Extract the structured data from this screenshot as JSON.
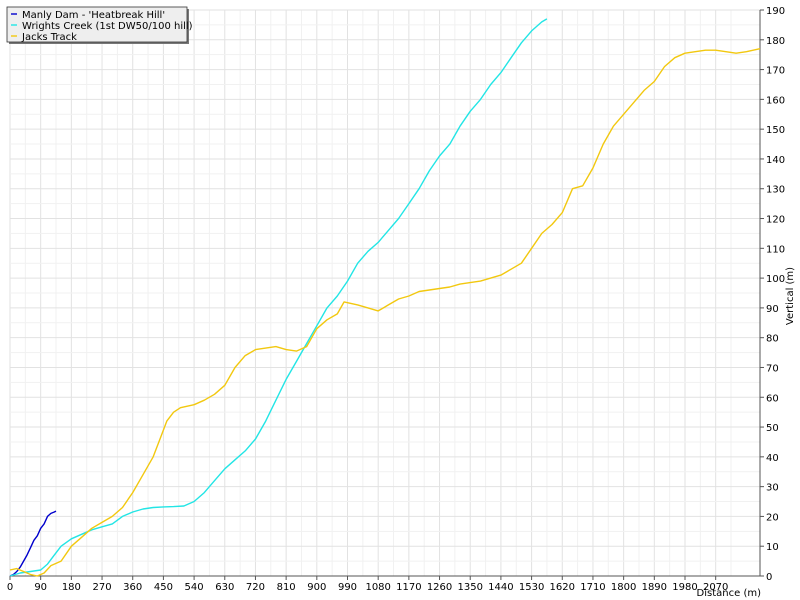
{
  "chart_data": {
    "type": "line",
    "title": "",
    "xlabel": "Distance (m)",
    "ylabel": "Vertical (m)",
    "xlim": [
      0,
      2200
    ],
    "ylim": [
      0,
      190
    ],
    "x_ticks": [
      0,
      90,
      180,
      270,
      360,
      450,
      540,
      630,
      720,
      810,
      900,
      990,
      1080,
      1170,
      1260,
      1350,
      1440,
      1530,
      1620,
      1710,
      1800,
      1890,
      1980,
      2070
    ],
    "y_ticks": [
      0,
      10,
      20,
      30,
      40,
      50,
      60,
      70,
      80,
      90,
      100,
      110,
      120,
      130,
      140,
      150,
      160,
      170,
      180,
      190
    ],
    "grid": true,
    "legend_position": "top-left",
    "series": [
      {
        "name": "Manly Dam - 'Heatbreak Hill'",
        "color": "#0000cc",
        "points": [
          [
            0,
            0
          ],
          [
            10,
            0.5
          ],
          [
            20,
            1.5
          ],
          [
            30,
            3
          ],
          [
            40,
            5
          ],
          [
            50,
            7
          ],
          [
            60,
            9.5
          ],
          [
            70,
            12
          ],
          [
            80,
            13.5
          ],
          [
            90,
            16
          ],
          [
            100,
            17.5
          ],
          [
            110,
            20
          ],
          [
            120,
            21
          ],
          [
            130,
            21.5
          ],
          [
            135,
            21.8
          ]
        ]
      },
      {
        "name": "Wrights Creek (1st DW50/100 hill)",
        "color": "#22e5e5",
        "points": [
          [
            0,
            0
          ],
          [
            30,
            1
          ],
          [
            60,
            1.5
          ],
          [
            90,
            2
          ],
          [
            110,
            4
          ],
          [
            130,
            7
          ],
          [
            150,
            10
          ],
          [
            180,
            12.5
          ],
          [
            210,
            14
          ],
          [
            240,
            15.5
          ],
          [
            270,
            16.5
          ],
          [
            300,
            17.5
          ],
          [
            330,
            20
          ],
          [
            360,
            21.5
          ],
          [
            390,
            22.5
          ],
          [
            420,
            23
          ],
          [
            450,
            23.2
          ],
          [
            480,
            23.3
          ],
          [
            510,
            23.5
          ],
          [
            540,
            25
          ],
          [
            570,
            28
          ],
          [
            600,
            32
          ],
          [
            630,
            36
          ],
          [
            660,
            39
          ],
          [
            690,
            42
          ],
          [
            720,
            46
          ],
          [
            750,
            52
          ],
          [
            780,
            59
          ],
          [
            810,
            66
          ],
          [
            840,
            72
          ],
          [
            870,
            78
          ],
          [
            900,
            84
          ],
          [
            930,
            90
          ],
          [
            960,
            94
          ],
          [
            990,
            99
          ],
          [
            1020,
            105
          ],
          [
            1050,
            109
          ],
          [
            1080,
            112
          ],
          [
            1110,
            116
          ],
          [
            1140,
            120
          ],
          [
            1170,
            125
          ],
          [
            1200,
            130
          ],
          [
            1230,
            136
          ],
          [
            1260,
            141
          ],
          [
            1290,
            145
          ],
          [
            1320,
            151
          ],
          [
            1350,
            156
          ],
          [
            1380,
            160
          ],
          [
            1410,
            165
          ],
          [
            1440,
            169
          ],
          [
            1470,
            174
          ],
          [
            1500,
            179
          ],
          [
            1530,
            183
          ],
          [
            1560,
            186
          ],
          [
            1575,
            187
          ]
        ]
      },
      {
        "name": "Jacks Track",
        "color": "#f2c80f",
        "points": [
          [
            0,
            2
          ],
          [
            20,
            2.5
          ],
          [
            40,
            1.5
          ],
          [
            60,
            0.5
          ],
          [
            80,
            0
          ],
          [
            100,
            1
          ],
          [
            120,
            3.5
          ],
          [
            150,
            5
          ],
          [
            180,
            10
          ],
          [
            210,
            13
          ],
          [
            240,
            16
          ],
          [
            270,
            18
          ],
          [
            300,
            20
          ],
          [
            330,
            23
          ],
          [
            360,
            28
          ],
          [
            390,
            34
          ],
          [
            420,
            40
          ],
          [
            440,
            46
          ],
          [
            460,
            52
          ],
          [
            480,
            55
          ],
          [
            500,
            56.5
          ],
          [
            520,
            57
          ],
          [
            540,
            57.5
          ],
          [
            570,
            59
          ],
          [
            600,
            61
          ],
          [
            630,
            64
          ],
          [
            660,
            70
          ],
          [
            690,
            74
          ],
          [
            720,
            76
          ],
          [
            750,
            76.5
          ],
          [
            780,
            77
          ],
          [
            810,
            76
          ],
          [
            840,
            75.5
          ],
          [
            870,
            77
          ],
          [
            900,
            83
          ],
          [
            930,
            86
          ],
          [
            960,
            88
          ],
          [
            980,
            92
          ],
          [
            1000,
            91.5
          ],
          [
            1020,
            91
          ],
          [
            1050,
            90
          ],
          [
            1080,
            89
          ],
          [
            1110,
            91
          ],
          [
            1140,
            93
          ],
          [
            1170,
            94
          ],
          [
            1200,
            95.5
          ],
          [
            1230,
            96
          ],
          [
            1260,
            96.5
          ],
          [
            1290,
            97
          ],
          [
            1320,
            98
          ],
          [
            1350,
            98.5
          ],
          [
            1380,
            99
          ],
          [
            1410,
            100
          ],
          [
            1440,
            101
          ],
          [
            1470,
            103
          ],
          [
            1500,
            105
          ],
          [
            1530,
            110
          ],
          [
            1560,
            115
          ],
          [
            1590,
            118
          ],
          [
            1620,
            122
          ],
          [
            1650,
            130
          ],
          [
            1680,
            131
          ],
          [
            1710,
            137
          ],
          [
            1740,
            145
          ],
          [
            1770,
            151
          ],
          [
            1800,
            155
          ],
          [
            1830,
            159
          ],
          [
            1860,
            163
          ],
          [
            1890,
            166
          ],
          [
            1920,
            171
          ],
          [
            1950,
            174
          ],
          [
            1980,
            175.5
          ],
          [
            2010,
            176
          ],
          [
            2040,
            176.5
          ],
          [
            2070,
            176.5
          ],
          [
            2100,
            176
          ],
          [
            2130,
            175.5
          ],
          [
            2160,
            176
          ],
          [
            2200,
            177
          ]
        ]
      }
    ]
  }
}
